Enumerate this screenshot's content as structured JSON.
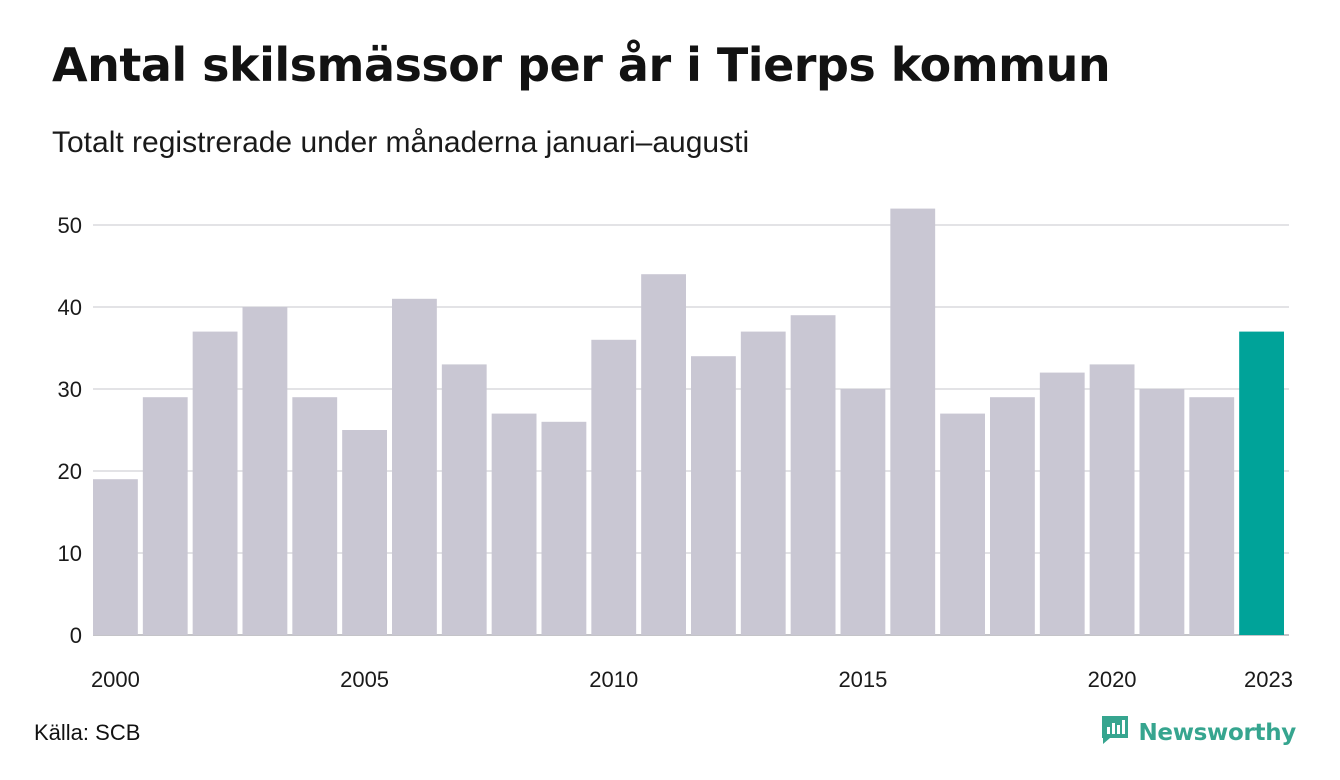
{
  "title": "Antal skilsmässor per år i Tierps kommun",
  "subtitle": "Totalt registrerade under månaderna januari–augusti",
  "source": "Källa: SCB",
  "brand": {
    "name": "Newsworthy",
    "icon": "newsworthy-logo-icon",
    "color": "#36a58f"
  },
  "colors": {
    "bar": "#c9c7d3",
    "highlight": "#00a399",
    "grid": "#e3e3e6",
    "baseline": "#c4c4c8"
  },
  "chart_data": {
    "type": "bar",
    "title": "Antal skilsmässor per år i Tierps kommun",
    "subtitle": "Totalt registrerade under månaderna januari–augusti",
    "xlabel": "",
    "ylabel": "",
    "categories": [
      2000,
      2001,
      2002,
      2003,
      2004,
      2005,
      2006,
      2007,
      2008,
      2009,
      2010,
      2011,
      2012,
      2013,
      2014,
      2015,
      2016,
      2017,
      2018,
      2019,
      2020,
      2021,
      2022,
      2023
    ],
    "values": [
      19,
      29,
      37,
      40,
      29,
      25,
      41,
      33,
      27,
      26,
      36,
      44,
      34,
      37,
      39,
      30,
      52,
      27,
      29,
      32,
      33,
      30,
      29,
      37
    ],
    "highlight_category": 2023,
    "ylim": [
      0,
      52
    ],
    "yticks": [
      0,
      10,
      20,
      30,
      40,
      50
    ],
    "xtick_labels": [
      "2000",
      "2005",
      "2010",
      "2015",
      "2020",
      "2023"
    ],
    "grid": true,
    "legend": "none"
  }
}
